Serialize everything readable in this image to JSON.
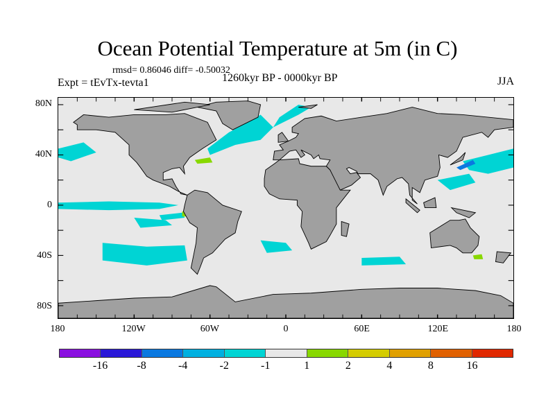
{
  "title": "Ocean Potential Temperature at 5m (in C)",
  "stats": "rmsd= 0.86046 diff= -0.50032",
  "experiment": "Expt = tEvTx-tevta1",
  "period": "1260kyr BP - 0000kyr BP",
  "season": "JJA",
  "chart_data": {
    "type": "map",
    "projection": "cylindrical equidistant",
    "variable": "Ocean potential temperature anomaly at 5m",
    "units": "C",
    "lon_range": [
      -180,
      180
    ],
    "lat_range": [
      -90,
      85
    ],
    "y_ticks": [
      {
        "lat": 80,
        "label": "80N"
      },
      {
        "lat": 40,
        "label": "40N"
      },
      {
        "lat": 0,
        "label": "0"
      },
      {
        "lat": -40,
        "label": "40S"
      },
      {
        "lat": -80,
        "label": "80S"
      }
    ],
    "x_ticks": [
      {
        "lon": -180,
        "label": "180"
      },
      {
        "lon": -120,
        "label": "120W"
      },
      {
        "lon": -60,
        "label": "60W"
      },
      {
        "lon": 0,
        "label": "0"
      },
      {
        "lon": 60,
        "label": "60E"
      },
      {
        "lon": 120,
        "label": "120E"
      },
      {
        "lon": 180,
        "label": "180"
      }
    ],
    "colorbar": {
      "levels": [
        "-16",
        "-8",
        "-4",
        "-2",
        "-1",
        "1",
        "2",
        "4",
        "8",
        "16"
      ],
      "colors": [
        "#8a0fe0",
        "#2a18d8",
        "#0a78e0",
        "#00b0e0",
        "#00d4d4",
        "#e8e8e8",
        "#88d800",
        "#d4cc00",
        "#e0a000",
        "#e06000",
        "#e02800"
      ]
    },
    "land_color": "#a0a0a0",
    "ocean_neutral_color": "#e8e8e8"
  }
}
